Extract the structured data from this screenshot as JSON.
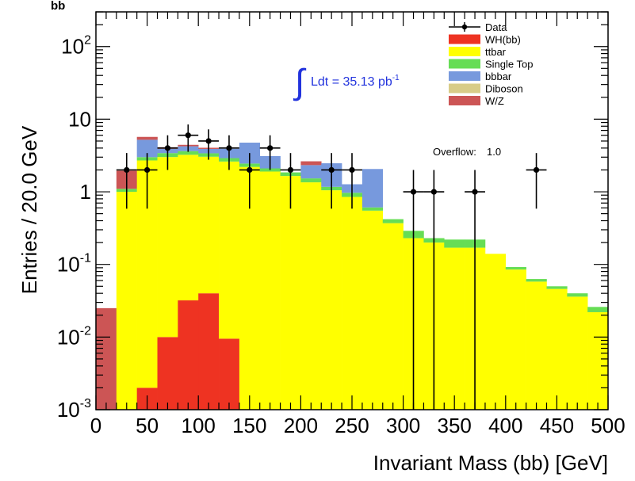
{
  "chart_data": {
    "type": "bar",
    "stacked": true,
    "log_y": true,
    "xlabel": "Invariant Mass (bb) [GeV]",
    "ylabel": "Entries / 20.0 GeV",
    "corner_label": "bb",
    "xlim": [
      0,
      500
    ],
    "ylim": [
      0.001,
      300
    ],
    "bin_width": 20,
    "x_ticks": [
      "0",
      "50",
      "100",
      "150",
      "200",
      "250",
      "300",
      "350",
      "400",
      "450",
      "500"
    ],
    "y_ticks": [
      {
        "value": 0.001,
        "base": "10",
        "exp": "-3"
      },
      {
        "value": 0.01,
        "base": "10",
        "exp": "-2"
      },
      {
        "value": 0.1,
        "base": "10",
        "exp": "-1"
      },
      {
        "value": 1,
        "base": "1",
        "exp": ""
      },
      {
        "value": 10,
        "base": "10",
        "exp": ""
      },
      {
        "value": 100,
        "base": "10",
        "exp": "2"
      }
    ],
    "bin_edges": [
      0,
      20,
      40,
      60,
      80,
      100,
      120,
      140,
      160,
      180,
      200,
      220,
      240,
      260,
      280,
      300,
      320,
      340,
      360,
      380,
      400,
      420,
      440,
      460,
      480,
      500
    ],
    "series": [
      {
        "name": "WH(bb)",
        "color": "#ee3322",
        "values": [
          0,
          0,
          0.002,
          0.01,
          0.032,
          0.04,
          0.0095,
          0,
          0,
          0,
          0,
          0,
          0,
          0,
          0,
          0,
          0,
          0,
          0,
          0,
          0,
          0,
          0,
          0,
          0
        ]
      },
      {
        "name": "ttbar",
        "color": "#ffff00",
        "values": [
          0,
          1.0,
          2.7,
          3.0,
          3.2,
          3.0,
          2.6,
          2.2,
          1.9,
          1.65,
          1.35,
          1.05,
          0.85,
          0.55,
          0.37,
          0.23,
          0.2,
          0.17,
          0.17,
          0.14,
          0.085,
          0.058,
          0.046,
          0.036,
          0.022
        ]
      },
      {
        "name": "Single Top",
        "color": "#66dd55",
        "values": [
          0,
          0.1,
          0.3,
          0.4,
          0.4,
          0.35,
          0.3,
          0.25,
          0.2,
          0.2,
          0.18,
          0.12,
          0.12,
          0.06,
          0.05,
          0.06,
          0.03,
          0.05,
          0.05,
          0,
          0.007,
          0.005,
          0.004,
          0.004,
          0.004
        ]
      },
      {
        "name": "bbbar",
        "color": "#7799dd",
        "values": [
          0,
          0,
          2.2,
          0.5,
          0.6,
          0.5,
          1.0,
          2.3,
          1.0,
          0,
          0.8,
          1.3,
          0.3,
          1.45,
          0,
          0,
          0,
          0,
          0,
          0,
          0,
          0,
          0,
          0,
          0
        ]
      },
      {
        "name": "Diboson",
        "color": "#d8cc88",
        "values": [
          0,
          0,
          0,
          0,
          0,
          0,
          0,
          0,
          0,
          0,
          0,
          0,
          0,
          0,
          0,
          0,
          0,
          0,
          0,
          0,
          0,
          0,
          0,
          0,
          0
        ]
      },
      {
        "name": "W/Z",
        "color": "#cc5555",
        "values": [
          0.025,
          0.85,
          0.5,
          0.2,
          0.2,
          0.15,
          0,
          0,
          0,
          0,
          0.3,
          0,
          0,
          0,
          0,
          0,
          0,
          0,
          0,
          0,
          0,
          0,
          0,
          0,
          0
        ]
      }
    ],
    "data_points": {
      "name": "Data",
      "x": [
        30,
        50,
        70,
        90,
        110,
        130,
        150,
        170,
        190,
        230,
        250,
        310,
        330,
        370,
        430
      ],
      "y": [
        2,
        2,
        4,
        6,
        5,
        4,
        2,
        4,
        2,
        2,
        2,
        1,
        1,
        1,
        2
      ]
    },
    "annotations": {
      "luminosity": "Ldt = 35.13 pb",
      "luminosity_exp": "-1",
      "overflow_label": "Overflow:",
      "overflow_value": "1.0"
    },
    "legend_position": "top-right"
  }
}
